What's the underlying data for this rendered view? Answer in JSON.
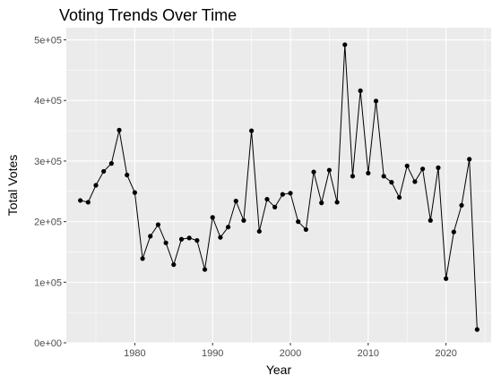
{
  "chart_data": {
    "type": "line",
    "title": "Voting Trends Over Time",
    "xlabel": "Year",
    "ylabel": "Total Votes",
    "xlim": [
      1971.2,
      2025.8
    ],
    "ylim": [
      0,
      520000
    ],
    "x_ticks": [
      1980,
      1990,
      2000,
      2010,
      2020
    ],
    "x_tick_labels": [
      "1980",
      "1990",
      "2000",
      "2010",
      "2020"
    ],
    "y_ticks": [
      0,
      100000,
      200000,
      300000,
      400000,
      500000
    ],
    "y_tick_labels": [
      "0e+00",
      "1e+05",
      "2e+05",
      "3e+05",
      "4e+05",
      "5e+05"
    ],
    "grid": true,
    "legend": "none",
    "colors": {
      "panel": "#ebebeb",
      "grid": "#ffffff",
      "line": "#000000",
      "point": "#000000"
    },
    "series": [
      {
        "x": [
          1973,
          1974,
          1975,
          1976,
          1977,
          1978,
          1979,
          1980,
          1981,
          1982,
          1983,
          1984,
          1985,
          1986,
          1987,
          1988,
          1989,
          1990,
          1991,
          1992,
          1993,
          1994,
          1995,
          1996,
          1997,
          1998,
          1999,
          2000,
          2001,
          2002,
          2003,
          2004,
          2005,
          2006,
          2007,
          2008,
          2009,
          2010,
          2011,
          2012,
          2013,
          2014,
          2015,
          2016,
          2017,
          2018,
          2019,
          2020,
          2021,
          2022,
          2023,
          2024
        ],
        "y": [
          235000,
          232000,
          260000,
          283000,
          296000,
          351000,
          277000,
          248000,
          139000,
          176000,
          195000,
          165000,
          129000,
          171000,
          173000,
          169000,
          121000,
          207000,
          174000,
          191000,
          234000,
          202000,
          350000,
          184000,
          237000,
          224000,
          245000,
          247000,
          200000,
          187000,
          282000,
          231000,
          285000,
          232000,
          492000,
          275000,
          416000,
          280000,
          399000,
          275000,
          265000,
          240000,
          292000,
          266000,
          287000,
          202000,
          289000,
          106000,
          183000,
          227000,
          303000,
          22000
        ]
      }
    ]
  }
}
